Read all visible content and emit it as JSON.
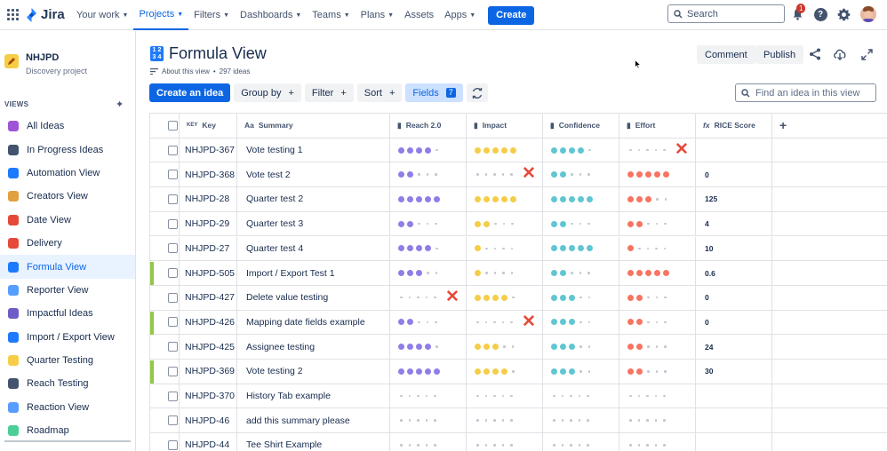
{
  "topbar": {
    "product": "Jira",
    "nav": [
      {
        "label": "Your work",
        "chevron": true,
        "active": false
      },
      {
        "label": "Projects",
        "chevron": true,
        "active": true
      },
      {
        "label": "Filters",
        "chevron": true,
        "active": false
      },
      {
        "label": "Dashboards",
        "chevron": true,
        "active": false
      },
      {
        "label": "Teams",
        "chevron": true,
        "active": false
      },
      {
        "label": "Plans",
        "chevron": true,
        "active": false
      },
      {
        "label": "Assets",
        "chevron": false,
        "active": false
      },
      {
        "label": "Apps",
        "chevron": true,
        "active": false
      }
    ],
    "create_label": "Create",
    "search_placeholder": "Search",
    "notification_count": "1",
    "help_glyph": "?"
  },
  "sidebar": {
    "project_name": "NHJPD",
    "project_type": "Discovery project",
    "views_header": "VIEWS",
    "items": [
      {
        "label": "All Ideas",
        "icon": "crystal-ball-icon",
        "color": "#a054d6",
        "active": false
      },
      {
        "label": "In Progress Ideas",
        "icon": "soon-icon",
        "color": "#44546f",
        "active": false
      },
      {
        "label": "Automation View",
        "icon": "robot-icon",
        "color": "#1d7afc",
        "active": false
      },
      {
        "label": "Creators View",
        "icon": "person-icon",
        "color": "#e2a03f",
        "active": false
      },
      {
        "label": "Date View",
        "icon": "calendar-icon",
        "color": "#e5493a",
        "active": false
      },
      {
        "label": "Delivery",
        "icon": "truck-icon",
        "color": "#e5493a",
        "active": false
      },
      {
        "label": "Formula View",
        "icon": "numbers-icon",
        "color": "#1d7afc",
        "active": true
      },
      {
        "label": "Reporter View",
        "icon": "brush-icon",
        "color": "#579dff",
        "active": false
      },
      {
        "label": "Impactful Ideas",
        "icon": "chart-icon",
        "color": "#6e5dc6",
        "active": false
      },
      {
        "label": "Import / Export View",
        "icon": "arrows-icon",
        "color": "#1d7afc",
        "active": false
      },
      {
        "label": "Quarter Testing",
        "icon": "moon-icon",
        "color": "#f5cd47",
        "active": false
      },
      {
        "label": "Reach Testing",
        "icon": "satellite-icon",
        "color": "#44546f",
        "active": false
      },
      {
        "label": "Reaction View",
        "icon": "pressure-icon",
        "color": "#579dff",
        "active": false
      },
      {
        "label": "Roadmap",
        "icon": "map-icon",
        "color": "#4bce97",
        "active": false
      }
    ]
  },
  "view": {
    "title": "Formula View",
    "about": "About this view",
    "sep": "•",
    "idea_count": "297 ideas",
    "comment_label": "Comment",
    "publish_label": "Publish",
    "title_icon_digits": [
      "1",
      "2",
      "3",
      "4"
    ]
  },
  "toolbar": {
    "create_idea": "Create an idea",
    "group_by": "Group by",
    "filter": "Filter",
    "sort": "Sort",
    "fields": "Fields",
    "fields_count": "7",
    "plus": "+",
    "find_placeholder": "Find an idea in this view"
  },
  "columns": {
    "key_prefix": "KEY",
    "key": "Key",
    "summary": "Summary",
    "reach": "Reach 2.0",
    "impact": "Impact",
    "confidence": "Confidence",
    "effort": "Effort",
    "rice": "RICE Score",
    "add_column": "+"
  },
  "colors": {
    "reach": "#8f7ee7",
    "impact": "#f5cd47",
    "confidence": "#60c6d2",
    "effort": "#f87462",
    "empty": "#c1c7d0",
    "delivery_bar": "#94c748"
  },
  "rows": [
    {
      "key": "NHJPD-367",
      "summary": "Vote testing 1",
      "reach": 4,
      "impact": 5,
      "confidence": 4,
      "effort": 0,
      "score": "",
      "bar": false,
      "x_col": "effort"
    },
    {
      "key": "NHJPD-368",
      "summary": "Vote test 2",
      "reach": 2,
      "impact": 0,
      "confidence": 2,
      "effort": 5,
      "score": "0",
      "bar": false,
      "x_col": "impact"
    },
    {
      "key": "NHJPD-28",
      "summary": "Quarter test 2",
      "reach": 5,
      "impact": 5,
      "confidence": 5,
      "effort": 3,
      "score": "125",
      "bar": false,
      "x_col": ""
    },
    {
      "key": "NHJPD-29",
      "summary": "Quarter test 3",
      "reach": 2,
      "impact": 2,
      "confidence": 2,
      "effort": 2,
      "score": "4",
      "bar": false,
      "x_col": ""
    },
    {
      "key": "NHJPD-27",
      "summary": "Quarter test 4",
      "reach": 4,
      "impact": 1,
      "confidence": 5,
      "effort": 1,
      "score": "10",
      "bar": false,
      "x_col": ""
    },
    {
      "key": "NHJPD-505",
      "summary": "Import / Export Test 1",
      "reach": 3,
      "impact": 1,
      "confidence": 2,
      "effort": 5,
      "score": "0.6",
      "bar": true,
      "x_col": ""
    },
    {
      "key": "NHJPD-427",
      "summary": "Delete value testing",
      "reach": 0,
      "impact": 4,
      "confidence": 3,
      "effort": 2,
      "score": "0",
      "bar": false,
      "x_col": "reach"
    },
    {
      "key": "NHJPD-426",
      "summary": "Mapping date fields example",
      "reach": 2,
      "impact": 0,
      "confidence": 3,
      "effort": 2,
      "score": "0",
      "bar": true,
      "x_col": "impact"
    },
    {
      "key": "NHJPD-425",
      "summary": "Assignee testing",
      "reach": 4,
      "impact": 3,
      "confidence": 3,
      "effort": 2,
      "score": "24",
      "bar": false,
      "x_col": ""
    },
    {
      "key": "NHJPD-369",
      "summary": "Vote testing 2",
      "reach": 5,
      "impact": 4,
      "confidence": 3,
      "effort": 2,
      "score": "30",
      "bar": true,
      "x_col": ""
    },
    {
      "key": "NHJPD-370",
      "summary": "History Tab example",
      "reach": 0,
      "impact": 0,
      "confidence": 0,
      "effort": 0,
      "score": "",
      "bar": false,
      "x_col": ""
    },
    {
      "key": "NHJPD-46",
      "summary": "add this summary please",
      "reach": 0,
      "impact": 0,
      "confidence": 0,
      "effort": 0,
      "score": "",
      "bar": false,
      "x_col": ""
    },
    {
      "key": "NHJPD-44",
      "summary": "Tee Shirt Example",
      "reach": 0,
      "impact": 0,
      "confidence": 0,
      "effort": 0,
      "score": "",
      "bar": false,
      "x_col": ""
    }
  ]
}
